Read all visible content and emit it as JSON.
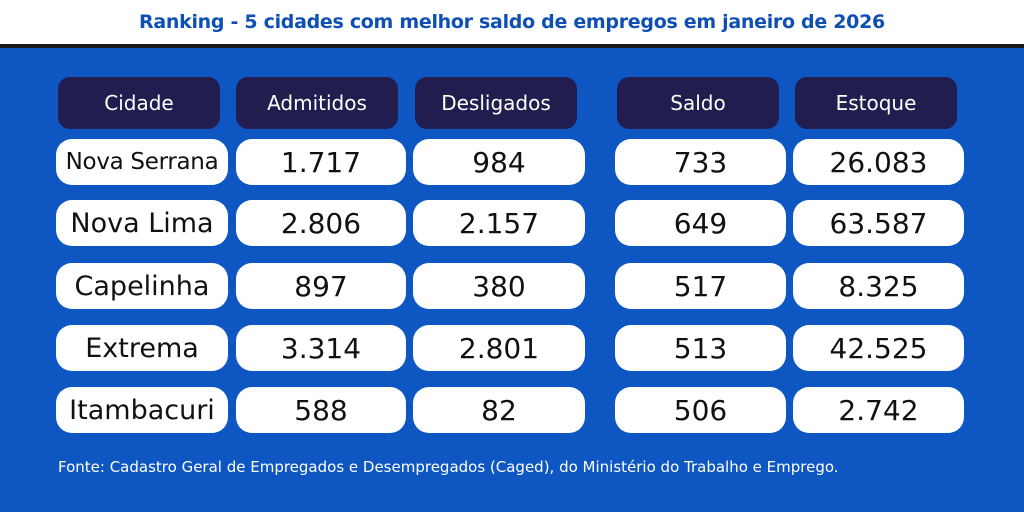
{
  "title": "Ranking - 5 cidades com melhor saldo de empregos em janeiro de 2026",
  "columns": [
    "Cidade",
    "Admitidos",
    "Desligados",
    "Saldo",
    "Estoque"
  ],
  "rows": [
    [
      "Nova Serrana",
      "1.717",
      "984",
      "733",
      "26.083"
    ],
    [
      "Nova Lima",
      "2.806",
      "2.157",
      "649",
      "63.587"
    ],
    [
      "Capelinha",
      "897",
      "380",
      "517",
      "8.325"
    ],
    [
      "Extrema",
      "3.314",
      "2.801",
      "513",
      "42.525"
    ],
    [
      "Itambacuri",
      "588",
      "82",
      "506",
      "2.742"
    ]
  ],
  "source": "Fonte: Cadastro Geral de Empregados e Desempregados (Caged), do Ministério do Trabalho e Emprego.",
  "colors": {
    "background": "#0e57c2",
    "header_pill": "#211d4f",
    "title_text": "#0d4fb5",
    "cell": "#ffffff"
  }
}
